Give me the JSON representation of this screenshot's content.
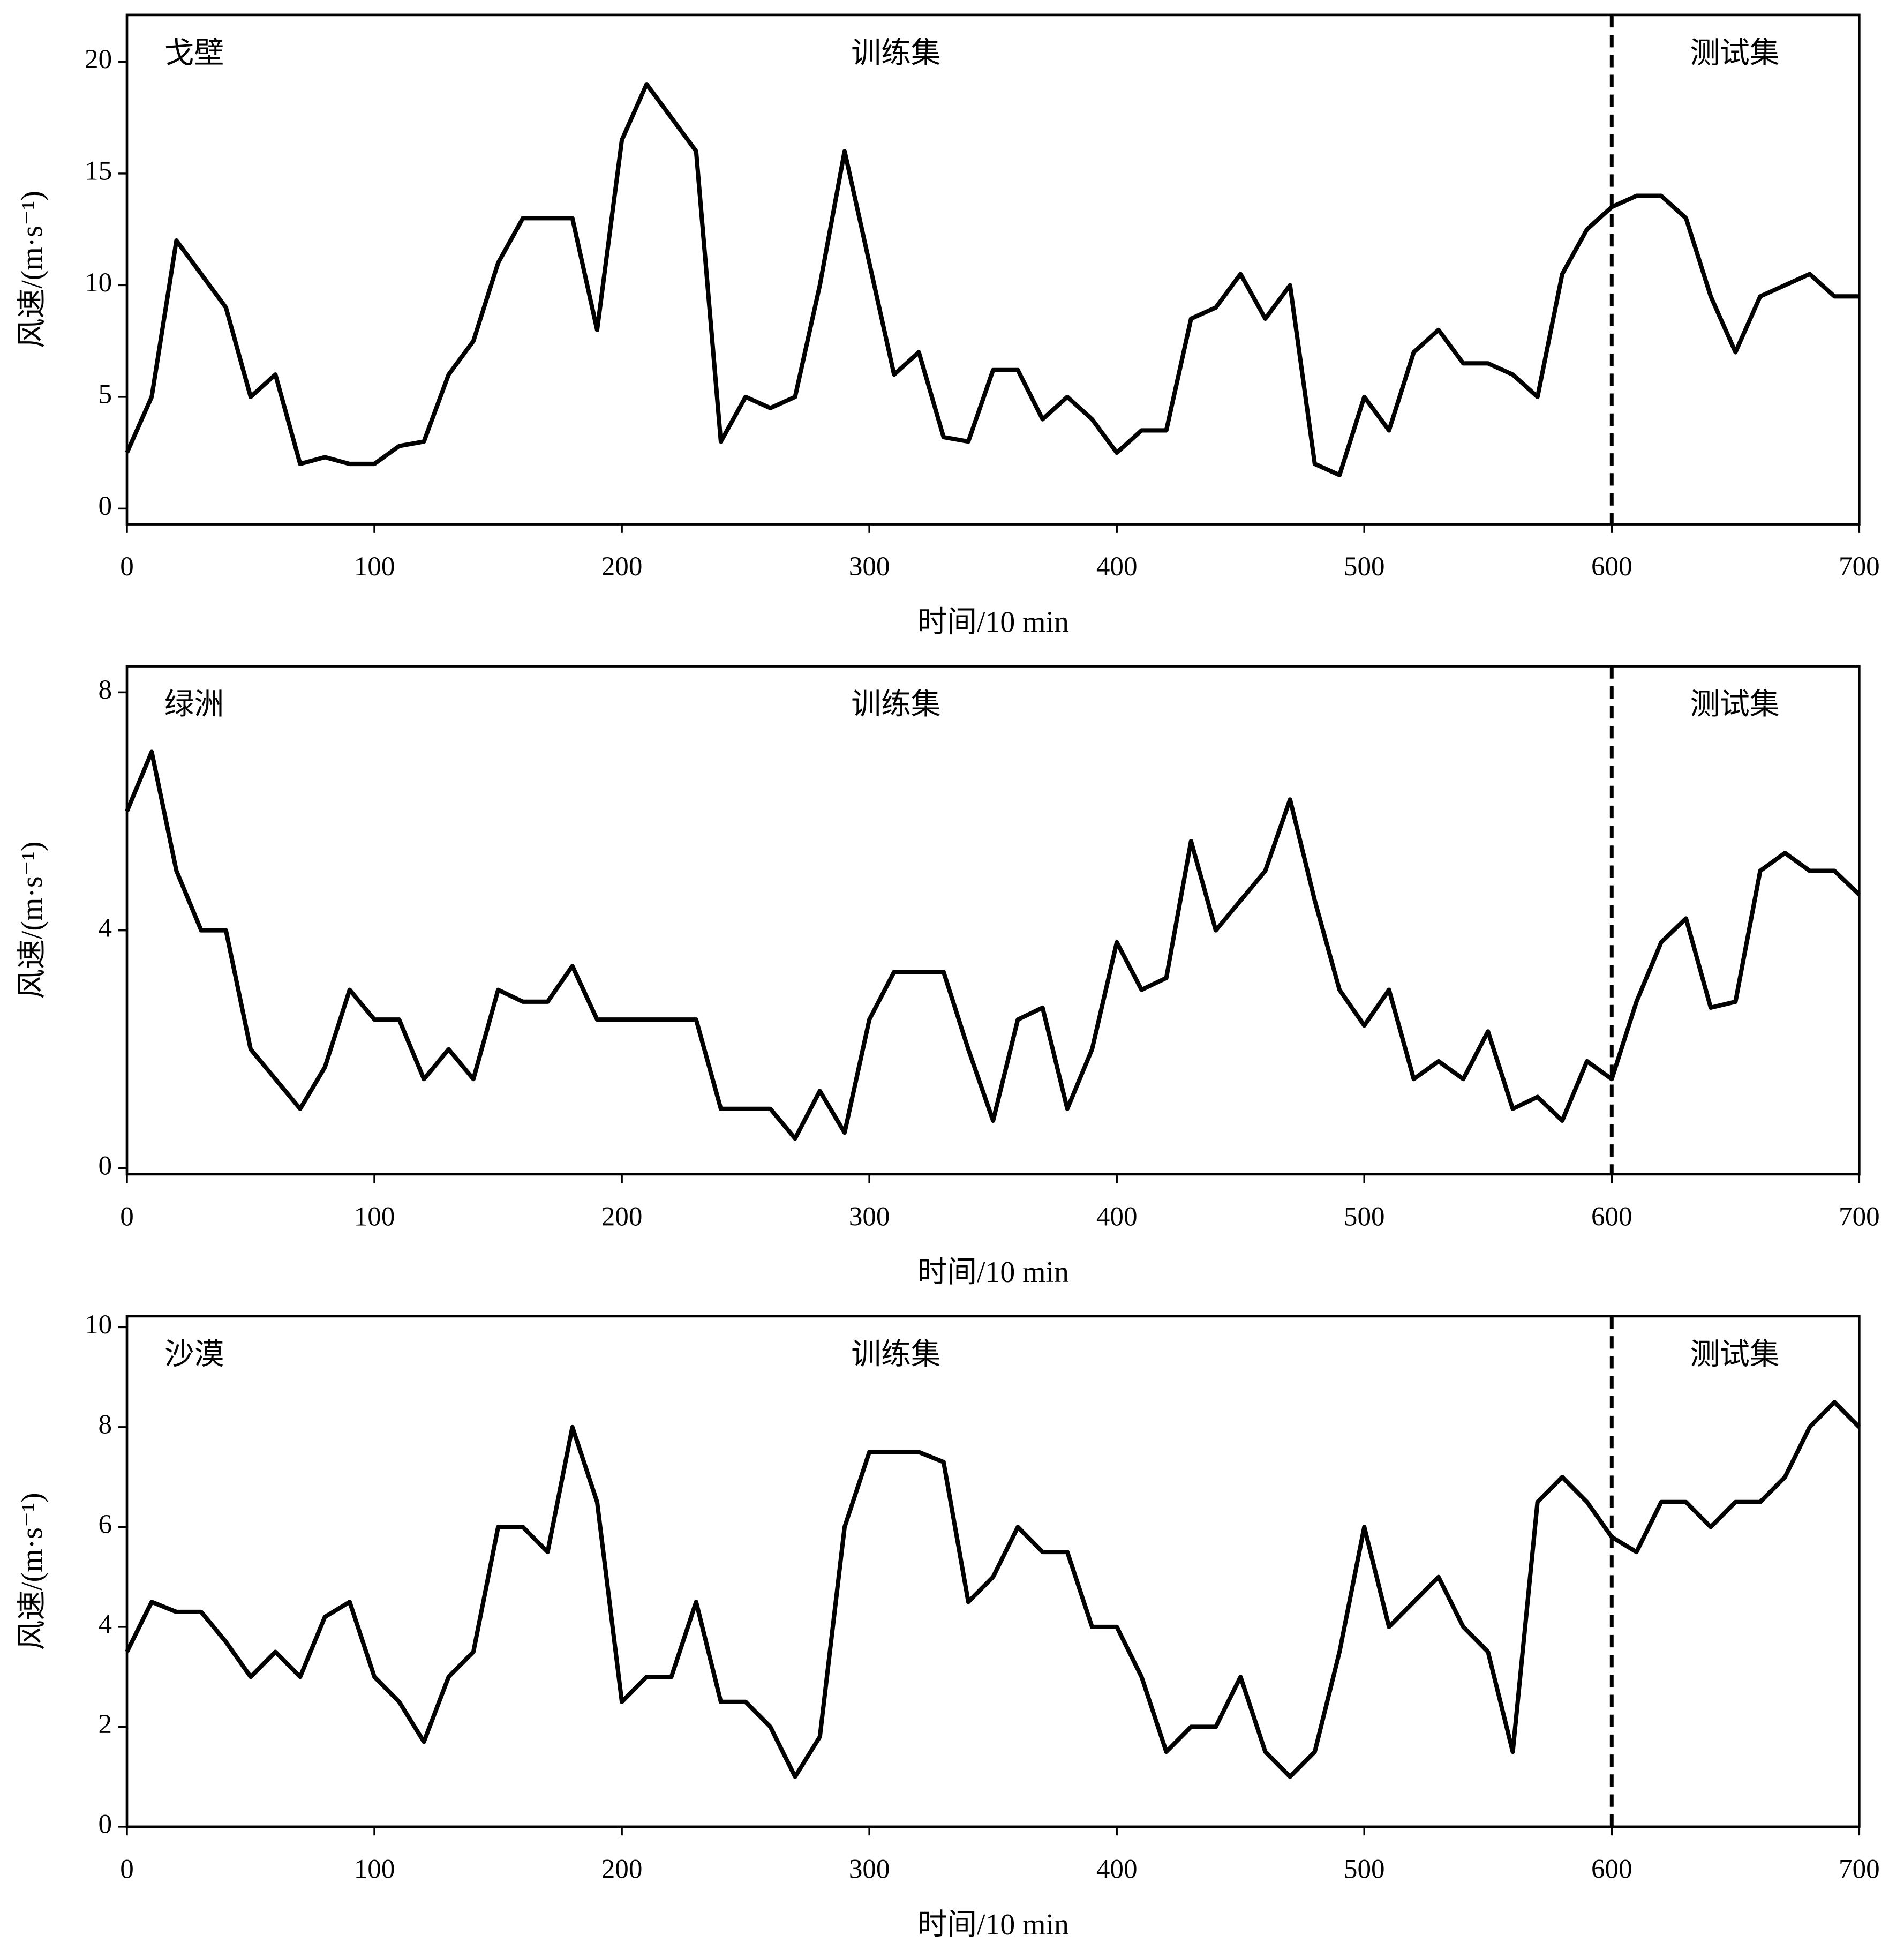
{
  "chart_data": [
    {
      "type": "line",
      "region": "戈壁",
      "train_label": "训练集",
      "test_label": "测试集",
      "split_x": 600,
      "xlabel": "时间/10 min",
      "ylabel": "风速/(m·s⁻¹)",
      "color": "#000000",
      "xlim": [
        0,
        700
      ],
      "ylim": [
        -0.7,
        22.1
      ],
      "xticks": [
        0,
        100,
        200,
        300,
        400,
        500,
        600,
        700
      ],
      "yticks": [
        0,
        5,
        10,
        15,
        20
      ],
      "grid": false,
      "x": [
        0,
        10,
        20,
        30,
        40,
        50,
        60,
        70,
        80,
        90,
        100,
        110,
        120,
        130,
        140,
        150,
        160,
        170,
        180,
        190,
        200,
        210,
        220,
        230,
        240,
        250,
        260,
        270,
        280,
        290,
        300,
        310,
        320,
        330,
        340,
        350,
        360,
        370,
        380,
        390,
        400,
        410,
        420,
        430,
        440,
        450,
        460,
        470,
        480,
        490,
        500,
        510,
        520,
        530,
        540,
        550,
        560,
        570,
        580,
        590,
        600,
        610,
        620,
        630,
        640,
        650,
        660,
        670,
        680,
        690,
        700
      ],
      "values": [
        2.5,
        5,
        12,
        10.5,
        9,
        5,
        6,
        2,
        2.3,
        2,
        2,
        2.8,
        3,
        6,
        7.5,
        11,
        13,
        13,
        13,
        8,
        16.5,
        19,
        17.5,
        16,
        3,
        5,
        4.5,
        5,
        10,
        16,
        11,
        6,
        7,
        3.2,
        3,
        6.2,
        6.2,
        4,
        5,
        4,
        2.5,
        3.5,
        3.5,
        8.5,
        9,
        10.5,
        8.5,
        10,
        2,
        1.5,
        5,
        3.5,
        7,
        8,
        6.5,
        6.5,
        6,
        5,
        10.5,
        12.5,
        13.5,
        14,
        14,
        13,
        9.5,
        7,
        9.5,
        10,
        10.5,
        9.5,
        9.5
      ]
    },
    {
      "type": "line",
      "region": "绿洲",
      "train_label": "训练集",
      "test_label": "测试集",
      "split_x": 600,
      "xlabel": "时间/10 min",
      "ylabel": "风速/(m·s⁻¹)",
      "color": "#000000",
      "xlim": [
        0,
        700
      ],
      "ylim": [
        -0.1,
        8.44
      ],
      "xticks": [
        0,
        100,
        200,
        300,
        400,
        500,
        600,
        700
      ],
      "yticks": [
        0,
        4,
        8
      ],
      "grid": false,
      "x": [
        0,
        10,
        20,
        30,
        40,
        50,
        60,
        70,
        80,
        90,
        100,
        110,
        120,
        130,
        140,
        150,
        160,
        170,
        180,
        190,
        200,
        210,
        220,
        230,
        240,
        250,
        260,
        270,
        280,
        290,
        300,
        310,
        320,
        330,
        340,
        350,
        360,
        370,
        380,
        390,
        400,
        410,
        420,
        430,
        440,
        450,
        460,
        470,
        480,
        490,
        500,
        510,
        520,
        530,
        540,
        550,
        560,
        570,
        580,
        590,
        600,
        610,
        620,
        630,
        640,
        650,
        660,
        670,
        680,
        690,
        700
      ],
      "values": [
        6,
        7,
        5,
        4,
        4,
        2,
        1.5,
        1,
        1.7,
        3,
        2.5,
        2.5,
        1.5,
        2,
        1.5,
        3,
        2.8,
        2.8,
        3.4,
        2.5,
        2.5,
        2.5,
        2.5,
        2.5,
        1,
        1,
        1,
        0.5,
        1.3,
        0.6,
        2.5,
        3.3,
        3.3,
        3.3,
        2,
        0.8,
        2.5,
        2.7,
        1,
        2,
        3.8,
        3,
        3.2,
        5.5,
        4,
        4.5,
        5,
        6.2,
        4.5,
        3,
        2.4,
        3,
        1.5,
        1.8,
        1.5,
        2.3,
        1,
        1.2,
        0.8,
        1.8,
        1.5,
        2.8,
        3.8,
        4.2,
        2.7,
        2.8,
        5,
        5.3,
        5,
        5,
        4.6
      ]
    },
    {
      "type": "line",
      "region": "沙漠",
      "train_label": "训练集",
      "test_label": "测试集",
      "split_x": 600,
      "xlabel": "时间/10 min",
      "ylabel": "风速/(m·s⁻¹)",
      "color": "#000000",
      "xlim": [
        0,
        700
      ],
      "ylim": [
        0,
        10.22
      ],
      "xticks": [
        0,
        100,
        200,
        300,
        400,
        500,
        600,
        700
      ],
      "yticks": [
        0,
        2,
        4,
        6,
        8,
        10
      ],
      "grid": false,
      "x": [
        0,
        10,
        20,
        30,
        40,
        50,
        60,
        70,
        80,
        90,
        100,
        110,
        120,
        130,
        140,
        150,
        160,
        170,
        180,
        190,
        200,
        210,
        220,
        230,
        240,
        250,
        260,
        270,
        280,
        290,
        300,
        310,
        320,
        330,
        340,
        350,
        360,
        370,
        380,
        390,
        400,
        410,
        420,
        430,
        440,
        450,
        460,
        470,
        480,
        490,
        500,
        510,
        520,
        530,
        540,
        550,
        560,
        570,
        580,
        590,
        600,
        610,
        620,
        630,
        640,
        650,
        660,
        670,
        680,
        690,
        700
      ],
      "values": [
        3.5,
        4.5,
        4.3,
        4.3,
        3.7,
        3,
        3.5,
        3,
        4.2,
        4.5,
        3,
        2.5,
        1.7,
        3,
        3.5,
        6,
        6,
        5.5,
        8,
        6.5,
        2.5,
        3,
        3,
        4.5,
        2.5,
        2.5,
        2,
        1,
        1.8,
        6,
        7.5,
        7.5,
        7.5,
        7.3,
        4.5,
        5,
        6,
        5.5,
        5.5,
        4,
        4,
        3,
        1.5,
        2,
        2,
        3,
        1.5,
        1,
        1.5,
        3.5,
        6,
        4,
        4.5,
        5,
        4,
        3.5,
        1.5,
        6.5,
        7,
        6.5,
        5.8,
        5.5,
        6.5,
        6.5,
        6,
        6.5,
        6.5,
        7,
        8,
        8.5,
        8
      ]
    }
  ]
}
